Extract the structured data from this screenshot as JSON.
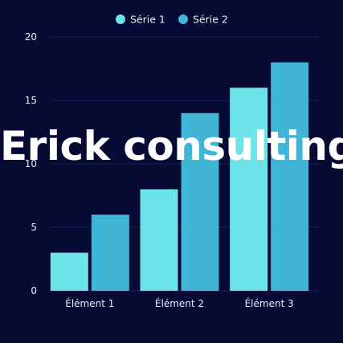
{
  "overlay": {
    "text": "Erick consulting"
  },
  "colors": {
    "background": "#070a33",
    "grid": "#1c2150",
    "series1": "#6ee4e8",
    "series2": "#41b5d6",
    "text": "#e6ecf5"
  },
  "chart_data": {
    "type": "bar",
    "categories": [
      "Élément 1",
      "Élément 2",
      "Élément 3"
    ],
    "series": [
      {
        "name": "Série 1",
        "values": [
          3,
          8,
          16
        ]
      },
      {
        "name": "Série 2",
        "values": [
          6,
          14,
          18
        ]
      }
    ],
    "ylim": [
      0,
      20
    ],
    "yticks": [
      0,
      5,
      10,
      15,
      20
    ],
    "grid": true,
    "legend": "top-center"
  }
}
